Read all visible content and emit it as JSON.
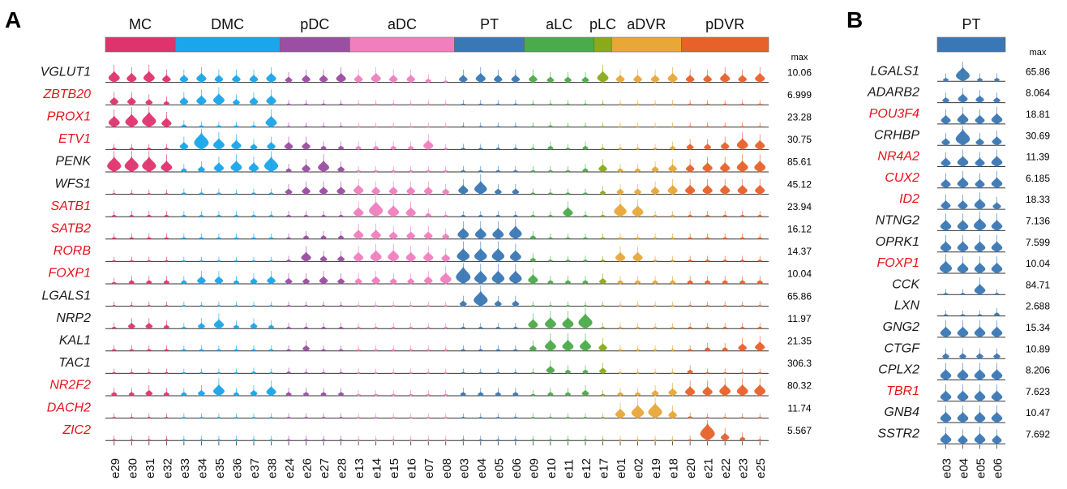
{
  "chart_data": [
    {
      "type": "violin",
      "panel_label": "A",
      "max_header": "max",
      "clusters": [
        "e29",
        "e30",
        "e31",
        "e32",
        "e33",
        "e34",
        "e35",
        "e36",
        "e37",
        "e38",
        "e24",
        "e26",
        "e27",
        "e28",
        "e13",
        "e14",
        "e15",
        "e16",
        "e07",
        "e08",
        "e03",
        "e04",
        "e05",
        "e06",
        "e09",
        "e10",
        "e11",
        "e12",
        "e17",
        "e01",
        "e02",
        "e19",
        "e18",
        "e20",
        "e21",
        "e22",
        "e23",
        "e25"
      ],
      "groups": [
        {
          "name": "MC",
          "size": 4,
          "color": "#e0336d"
        },
        {
          "name": "DMC",
          "size": 6,
          "color": "#19a6ea"
        },
        {
          "name": "pDC",
          "size": 4,
          "color": "#9b4ea3"
        },
        {
          "name": "aDC",
          "size": 6,
          "color": "#f17fbe"
        },
        {
          "name": "PT",
          "size": 4,
          "color": "#3a78b5"
        },
        {
          "name": "aLC",
          "size": 4,
          "color": "#4bab4a"
        },
        {
          "name": "pLC",
          "size": 1,
          "color": "#8aaa1a"
        },
        {
          "name": "aDVR",
          "size": 4,
          "color": "#e8a838"
        },
        {
          "name": "pDVR",
          "size": 5,
          "color": "#e8612a"
        }
      ],
      "genes": [
        {
          "name": "VGLUT1",
          "highlight": false,
          "max": "10.06",
          "levels": [
            0.6,
            0.5,
            0.6,
            0.4,
            0.4,
            0.5,
            0.4,
            0.4,
            0.4,
            0.5,
            0.3,
            0.4,
            0.4,
            0.5,
            0.4,
            0.5,
            0.4,
            0.4,
            0.2,
            0.1,
            0.4,
            0.5,
            0.4,
            0.4,
            0.4,
            0.3,
            0.3,
            0.3,
            0.6,
            0.4,
            0.4,
            0.4,
            0.5,
            0.4,
            0.4,
            0.5,
            0.4,
            0.5
          ]
        },
        {
          "name": "ZBTB20",
          "highlight": true,
          "max": "6.999",
          "levels": [
            0.4,
            0.4,
            0.3,
            0.2,
            0.4,
            0.5,
            0.6,
            0.3,
            0.4,
            0.5,
            0.05,
            0.05,
            0.05,
            0.05,
            0.05,
            0.05,
            0.05,
            0.05,
            0.05,
            0.05,
            0.05,
            0.05,
            0.05,
            0.05,
            0.05,
            0.05,
            0.05,
            0.05,
            0.05,
            0.05,
            0.05,
            0.05,
            0.05,
            0.05,
            0.05,
            0.05,
            0.05,
            0.05
          ]
        },
        {
          "name": "PROX1",
          "highlight": true,
          "max": "23.28",
          "levels": [
            0.6,
            0.7,
            0.8,
            0.5,
            0.15,
            0.1,
            0.1,
            0.1,
            0.1,
            0.6,
            0.03,
            0.03,
            0.03,
            0.03,
            0.03,
            0.03,
            0.03,
            0.03,
            0.03,
            0.03,
            0.03,
            0.03,
            0.03,
            0.03,
            0.03,
            0.1,
            0.03,
            0.03,
            0.03,
            0.03,
            0.03,
            0.03,
            0.03,
            0.03,
            0.03,
            0.03,
            0.03,
            0.03
          ]
        },
        {
          "name": "ETV1",
          "highlight": true,
          "max": "30.75",
          "levels": [
            0.1,
            0.1,
            0.1,
            0.1,
            0.4,
            0.9,
            0.6,
            0.5,
            0.3,
            0.4,
            0.4,
            0.4,
            0.2,
            0.2,
            0.2,
            0.2,
            0.2,
            0.2,
            0.5,
            0.1,
            0.1,
            0.1,
            0.1,
            0.1,
            0.1,
            0.2,
            0.1,
            0.2,
            0.1,
            0.1,
            0.1,
            0.1,
            0.2,
            0.3,
            0.3,
            0.4,
            0.6,
            0.5
          ]
        },
        {
          "name": "PENK",
          "highlight": false,
          "max": "85.61",
          "levels": [
            0.8,
            0.8,
            0.8,
            0.6,
            0.2,
            0.3,
            0.5,
            0.6,
            0.5,
            0.8,
            0.2,
            0.4,
            0.6,
            0.3,
            0.1,
            0.1,
            0.1,
            0.1,
            0.1,
            0.1,
            0.1,
            0.1,
            0.1,
            0.1,
            0.1,
            0.1,
            0.1,
            0.2,
            0.4,
            0.2,
            0.2,
            0.3,
            0.4,
            0.4,
            0.5,
            0.5,
            0.6,
            0.6
          ]
        },
        {
          "name": "WFS1",
          "highlight": false,
          "max": "45.12",
          "levels": [
            0.05,
            0.05,
            0.05,
            0.05,
            0.1,
            0.1,
            0.1,
            0.05,
            0.1,
            0.1,
            0.3,
            0.4,
            0.4,
            0.4,
            0.5,
            0.4,
            0.4,
            0.4,
            0.4,
            0.3,
            0.5,
            0.7,
            0.3,
            0.3,
            0.1,
            0.1,
            0.1,
            0.1,
            0.2,
            0.3,
            0.3,
            0.4,
            0.5,
            0.5,
            0.5,
            0.5,
            0.5,
            0.5
          ]
        },
        {
          "name": "SATB1",
          "highlight": true,
          "max": "23.94",
          "levels": [
            0.1,
            0.1,
            0.1,
            0.1,
            0.1,
            0.1,
            0.1,
            0.1,
            0.1,
            0.1,
            0.1,
            0.1,
            0.1,
            0.1,
            0.5,
            0.8,
            0.6,
            0.5,
            0.2,
            0.1,
            0.1,
            0.1,
            0.1,
            0.1,
            0.1,
            0.1,
            0.5,
            0.1,
            0.1,
            0.7,
            0.6,
            0.1,
            0.1,
            0.1,
            0.1,
            0.1,
            0.1,
            0.1
          ]
        },
        {
          "name": "SATB2",
          "highlight": true,
          "max": "16.12",
          "levels": [
            0.1,
            0.1,
            0.1,
            0.1,
            0.1,
            0.1,
            0.1,
            0.1,
            0.1,
            0.1,
            0.1,
            0.2,
            0.2,
            0.2,
            0.5,
            0.5,
            0.4,
            0.4,
            0.4,
            0.3,
            0.6,
            0.6,
            0.6,
            0.7,
            0.2,
            0.1,
            0.1,
            0.1,
            0.1,
            0.1,
            0.1,
            0.1,
            0.1,
            0.1,
            0.1,
            0.1,
            0.1,
            0.1
          ]
        },
        {
          "name": "RORB",
          "highlight": true,
          "max": "14.37",
          "levels": [
            0.05,
            0.05,
            0.05,
            0.05,
            0.05,
            0.05,
            0.05,
            0.05,
            0.05,
            0.05,
            0.1,
            0.5,
            0.3,
            0.3,
            0.5,
            0.6,
            0.6,
            0.5,
            0.5,
            0.4,
            0.7,
            0.7,
            0.7,
            0.6,
            0.2,
            0.1,
            0.1,
            0.1,
            0.1,
            0.5,
            0.5,
            0.1,
            0.1,
            0.1,
            0.1,
            0.1,
            0.1,
            0.1
          ]
        },
        {
          "name": "FOXP1",
          "highlight": true,
          "max": "10.04",
          "levels": [
            0.1,
            0.2,
            0.2,
            0.2,
            0.2,
            0.4,
            0.4,
            0.2,
            0.3,
            0.4,
            0.3,
            0.3,
            0.4,
            0.3,
            0.3,
            0.4,
            0.3,
            0.3,
            0.4,
            0.6,
            0.9,
            0.7,
            0.7,
            0.7,
            0.5,
            0.2,
            0.2,
            0.2,
            0.3,
            0.2,
            0.2,
            0.2,
            0.2,
            0.2,
            0.2,
            0.2,
            0.2,
            0.2
          ]
        },
        {
          "name": "LGALS1",
          "highlight": false,
          "max": "65.86",
          "levels": [
            0.03,
            0.03,
            0.03,
            0.03,
            0.03,
            0.03,
            0.03,
            0.03,
            0.03,
            0.03,
            0.03,
            0.03,
            0.03,
            0.03,
            0.03,
            0.03,
            0.03,
            0.03,
            0.03,
            0.03,
            0.3,
            0.8,
            0.3,
            0.3,
            0.03,
            0.03,
            0.03,
            0.03,
            0.03,
            0.03,
            0.03,
            0.03,
            0.03,
            0.03,
            0.03,
            0.03,
            0.03,
            0.03
          ]
        },
        {
          "name": "NRP2",
          "highlight": false,
          "max": "11.97",
          "levels": [
            0.1,
            0.3,
            0.3,
            0.2,
            0.1,
            0.3,
            0.5,
            0.2,
            0.3,
            0.2,
            0.1,
            0.1,
            0.1,
            0.1,
            0.1,
            0.1,
            0.1,
            0.1,
            0.1,
            0.1,
            0.1,
            0.1,
            0.1,
            0.1,
            0.5,
            0.6,
            0.6,
            0.8,
            0.1,
            0.1,
            0.1,
            0.1,
            0.1,
            0.1,
            0.1,
            0.1,
            0.1,
            0.1
          ]
        },
        {
          "name": "KAL1",
          "highlight": false,
          "max": "21.35",
          "levels": [
            0.1,
            0.1,
            0.1,
            0.1,
            0.1,
            0.1,
            0.1,
            0.1,
            0.1,
            0.1,
            0.1,
            0.3,
            0.1,
            0.1,
            0.1,
            0.1,
            0.1,
            0.1,
            0.1,
            0.1,
            0.1,
            0.1,
            0.1,
            0.1,
            0.3,
            0.6,
            0.6,
            0.6,
            0.4,
            0.1,
            0.1,
            0.1,
            0.1,
            0.1,
            0.2,
            0.2,
            0.4,
            0.5
          ]
        },
        {
          "name": "TAC1",
          "highlight": false,
          "max": "306.3",
          "levels": [
            0.05,
            0.05,
            0.05,
            0.05,
            0.05,
            0.05,
            0.05,
            0.05,
            0.1,
            0.05,
            0.1,
            0.05,
            0.05,
            0.05,
            0.05,
            0.05,
            0.05,
            0.05,
            0.05,
            0.05,
            0.05,
            0.05,
            0.05,
            0.05,
            0.05,
            0.4,
            0.2,
            0.2,
            0.3,
            0.05,
            0.05,
            0.05,
            0.05,
            0.2,
            0.05,
            0.05,
            0.05,
            0.05
          ]
        },
        {
          "name": "NR2F2",
          "highlight": true,
          "max": "80.32",
          "levels": [
            0.2,
            0.2,
            0.3,
            0.2,
            0.2,
            0.3,
            0.6,
            0.2,
            0.3,
            0.5,
            0.2,
            0.2,
            0.2,
            0.2,
            0.1,
            0.1,
            0.1,
            0.1,
            0.1,
            0.1,
            0.2,
            0.2,
            0.2,
            0.2,
            0.1,
            0.2,
            0.2,
            0.3,
            0.1,
            0.2,
            0.2,
            0.3,
            0.4,
            0.5,
            0.5,
            0.6,
            0.6,
            0.6
          ]
        },
        {
          "name": "DACH2",
          "highlight": true,
          "max": "11.74",
          "levels": [
            0.05,
            0.05,
            0.05,
            0.05,
            0.05,
            0.05,
            0.05,
            0.05,
            0.05,
            0.05,
            0.05,
            0.05,
            0.05,
            0.05,
            0.05,
            0.05,
            0.05,
            0.05,
            0.05,
            0.05,
            0.05,
            0.05,
            0.05,
            0.05,
            0.05,
            0.05,
            0.05,
            0.05,
            0.05,
            0.5,
            0.7,
            0.8,
            0.4,
            0.1,
            0.05,
            0.05,
            0.05,
            0.05
          ]
        },
        {
          "name": "ZIC2",
          "highlight": true,
          "max": "5.567",
          "levels": [
            0.05,
            0.05,
            0.05,
            0.05,
            0.05,
            0.05,
            0.05,
            0.05,
            0.05,
            0.05,
            0.05,
            0.05,
            0.05,
            0.05,
            0.05,
            0.05,
            0.05,
            0.05,
            0.05,
            0.05,
            0.05,
            0.05,
            0.05,
            0.05,
            0.05,
            0.05,
            0.05,
            0.05,
            0.05,
            0.05,
            0.05,
            0.05,
            0.05,
            0.05,
            0.9,
            0.4,
            0.2,
            0.05
          ]
        }
      ]
    },
    {
      "type": "violin",
      "panel_label": "B",
      "max_header": "max",
      "clusters": [
        "e03",
        "e04",
        "e05",
        "e06"
      ],
      "groups": [
        {
          "name": "PT",
          "size": 4,
          "color": "#3a78b5"
        }
      ],
      "genes": [
        {
          "name": "LGALS1",
          "highlight": false,
          "max": "65.86",
          "levels": [
            0.2,
            0.8,
            0.2,
            0.2
          ]
        },
        {
          "name": "ADARB2",
          "highlight": false,
          "max": "8.064",
          "levels": [
            0.3,
            0.5,
            0.4,
            0.3
          ]
        },
        {
          "name": "POU3F4",
          "highlight": true,
          "max": "18.81",
          "levels": [
            0.5,
            0.6,
            0.5,
            0.6
          ]
        },
        {
          "name": "CRHBP",
          "highlight": false,
          "max": "30.69",
          "levels": [
            0.4,
            0.9,
            0.4,
            0.5
          ]
        },
        {
          "name": "NR4A2",
          "highlight": true,
          "max": "11.39",
          "levels": [
            0.5,
            0.6,
            0.5,
            0.6
          ]
        },
        {
          "name": "CUX2",
          "highlight": true,
          "max": "6.185",
          "levels": [
            0.5,
            0.6,
            0.5,
            0.6
          ]
        },
        {
          "name": "ID2",
          "highlight": true,
          "max": "18.33",
          "levels": [
            0.5,
            0.5,
            0.6,
            0.4
          ]
        },
        {
          "name": "NTNG2",
          "highlight": false,
          "max": "7.136",
          "levels": [
            0.6,
            0.6,
            0.7,
            0.6
          ]
        },
        {
          "name": "OPRK1",
          "highlight": false,
          "max": "7.599",
          "levels": [
            0.6,
            0.6,
            0.6,
            0.6
          ]
        },
        {
          "name": "FOXP1",
          "highlight": true,
          "max": "10.04",
          "levels": [
            0.7,
            0.6,
            0.6,
            0.6
          ]
        },
        {
          "name": "CCK",
          "highlight": false,
          "max": "84.71",
          "levels": [
            0.1,
            0.1,
            0.6,
            0.1
          ]
        },
        {
          "name": "LXN",
          "highlight": false,
          "max": "2.688",
          "levels": [
            0.1,
            0.1,
            0.1,
            0.2
          ]
        },
        {
          "name": "GNG2",
          "highlight": false,
          "max": "15.34",
          "levels": [
            0.6,
            0.6,
            0.6,
            0.6
          ]
        },
        {
          "name": "CTGF",
          "highlight": false,
          "max": "10.89",
          "levels": [
            0.3,
            0.3,
            0.3,
            0.3
          ]
        },
        {
          "name": "CPLX2",
          "highlight": false,
          "max": "8.206",
          "levels": [
            0.6,
            0.6,
            0.6,
            0.6
          ]
        },
        {
          "name": "TBR1",
          "highlight": true,
          "max": "7.623",
          "levels": [
            0.6,
            0.6,
            0.6,
            0.6
          ]
        },
        {
          "name": "GNB4",
          "highlight": false,
          "max": "10.47",
          "levels": [
            0.6,
            0.6,
            0.6,
            0.6
          ]
        },
        {
          "name": "SSTR2",
          "highlight": false,
          "max": "7.692",
          "levels": [
            0.6,
            0.5,
            0.6,
            0.5
          ]
        }
      ]
    }
  ]
}
